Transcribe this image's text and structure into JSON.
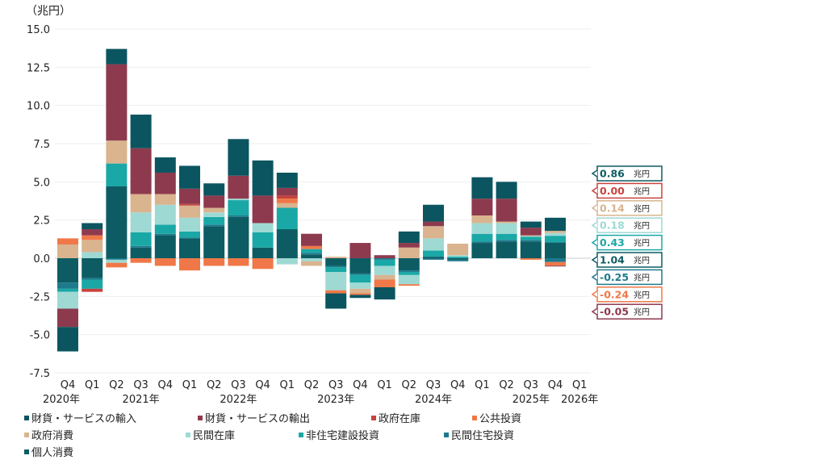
{
  "chart_data": {
    "type": "bar",
    "stacked": true,
    "unit_label": "（兆円）",
    "ylim": [
      -7.5,
      15.0
    ],
    "yticks": [
      "15.0",
      "12.5",
      "10.0",
      "7.5",
      "5.0",
      "2.5",
      "0.0",
      "-2.5",
      "-5.0",
      "-7.5"
    ],
    "ytick_values": [
      15.0,
      12.5,
      10.0,
      7.5,
      5.0,
      2.5,
      0.0,
      -2.5,
      -5.0,
      -7.5
    ],
    "categories": [
      "Q4",
      "Q1",
      "Q2",
      "Q3",
      "Q4",
      "Q1",
      "Q2",
      "Q3",
      "Q4",
      "Q1",
      "Q2",
      "Q3",
      "Q4",
      "Q1",
      "Q2",
      "Q3",
      "Q4",
      "Q1",
      "Q2",
      "Q3",
      "Q4",
      "Q1"
    ],
    "year_labels": [
      {
        "index": 0,
        "label": "2020年"
      },
      {
        "index": 3,
        "label": "2021年"
      },
      {
        "index": 7,
        "label": "2022年"
      },
      {
        "index": 11,
        "label": "2023年"
      },
      {
        "index": 15,
        "label": "2024年"
      },
      {
        "index": 19,
        "label": "2025年"
      },
      {
        "index": 21,
        "label": "2026年"
      }
    ],
    "series": [
      {
        "name": "個人消費",
        "color": "#0d5c63",
        "values": [
          -1.6,
          -1.3,
          4.7,
          0.7,
          1.5,
          1.3,
          2.1,
          2.7,
          0.7,
          1.9,
          0.25,
          -0.5,
          -1.0,
          0.0,
          -0.8,
          0.1,
          -0.1,
          1.0,
          1.1,
          1.1,
          1.04,
          null
        ]
      },
      {
        "name": "民間住宅投資",
        "color": "#1d7a8c",
        "values": [
          -0.4,
          -0.1,
          -0.1,
          0.1,
          0.1,
          0.05,
          0.1,
          0.1,
          0.0,
          0.0,
          0.1,
          -0.1,
          -0.1,
          -0.1,
          -0.1,
          -0.1,
          -0.1,
          0.1,
          0.1,
          0.1,
          -0.25,
          null
        ]
      },
      {
        "name": "非住宅建設投資",
        "color": "#1aa8a6",
        "values": [
          -0.2,
          -0.6,
          1.5,
          0.9,
          0.6,
          0.4,
          0.5,
          1.0,
          1.0,
          1.4,
          0.25,
          -0.3,
          -0.5,
          -0.4,
          -0.2,
          0.4,
          0.1,
          0.5,
          0.4,
          0.2,
          0.43,
          null
        ]
      },
      {
        "name": "民間在庫",
        "color": "#9fd9d4",
        "values": [
          -1.1,
          0.4,
          -0.2,
          1.3,
          1.3,
          0.9,
          0.3,
          0.1,
          0.6,
          -0.4,
          -0.2,
          -1.2,
          -0.4,
          -0.6,
          -0.6,
          0.8,
          0.1,
          0.7,
          0.7,
          0.05,
          0.18,
          null
        ]
      },
      {
        "name": "政府消費",
        "color": "#d9b48f",
        "values": [
          0.9,
          0.8,
          1.5,
          1.2,
          0.7,
          0.8,
          0.3,
          0.0,
          0.0,
          0.3,
          -0.3,
          0.1,
          -0.3,
          -0.3,
          0.7,
          0.8,
          0.75,
          0.5,
          0.1,
          0.05,
          0.14,
          null
        ]
      },
      {
        "name": "公共投資",
        "color": "#f07848",
        "values": [
          0.4,
          0.3,
          -0.3,
          -0.3,
          -0.5,
          -0.8,
          -0.5,
          -0.5,
          -0.7,
          0.3,
          0.2,
          -0.2,
          -0.1,
          -0.5,
          -0.1,
          0.0,
          0.0,
          0.0,
          0.0,
          -0.1,
          -0.24,
          null
        ]
      },
      {
        "name": "政府在庫",
        "color": "#c8423c",
        "values": [
          0.0,
          -0.2,
          0.0,
          0.0,
          0.0,
          0.1,
          0.0,
          0.0,
          0.0,
          0.2,
          0.0,
          0.0,
          0.0,
          0.0,
          0.0,
          0.0,
          0.0,
          0.0,
          0.0,
          0.0,
          0.0,
          null
        ]
      },
      {
        "name": "財貨・サービスの輸出",
        "color": "#8e3a4e",
        "values": [
          -1.2,
          0.4,
          5.0,
          3.0,
          1.4,
          1.0,
          0.8,
          1.5,
          1.8,
          0.5,
          0.8,
          0.0,
          1.0,
          0.2,
          0.3,
          0.3,
          0.0,
          1.1,
          1.5,
          0.5,
          -0.05,
          null
        ]
      },
      {
        "name": "財貨・サービスの輸入",
        "color": "#0b5560",
        "values": [
          -1.6,
          0.4,
          1.0,
          2.2,
          1.0,
          1.5,
          0.8,
          2.4,
          2.3,
          1.0,
          0.0,
          -1.0,
          -0.2,
          -0.8,
          0.75,
          1.1,
          0.0,
          1.4,
          1.1,
          0.4,
          0.86,
          null
        ]
      }
    ],
    "annotations": [
      {
        "value": "0.86",
        "unit": "兆円",
        "color": "#0d5c63",
        "series": "財貨・サービスの輸入"
      },
      {
        "value": "0.00",
        "unit": "兆円",
        "color": "#c8423c",
        "series": "政府在庫"
      },
      {
        "value": "0.14",
        "unit": "兆円",
        "color": "#d9b48f",
        "series": "政府消費"
      },
      {
        "value": "0.18",
        "unit": "兆円",
        "color": "#9fd9d4",
        "series": "民間在庫"
      },
      {
        "value": "0.43",
        "unit": "兆円",
        "color": "#1aa8a6",
        "series": "非住宅建設投資"
      },
      {
        "value": "1.04",
        "unit": "兆円",
        "color": "#0d5c63",
        "series": "個人消費"
      },
      {
        "value": "-0.25",
        "unit": "兆円",
        "color": "#1d7a8c",
        "series": "民間住宅投資"
      },
      {
        "value": "-0.24",
        "unit": "兆円",
        "color": "#f07848",
        "series": "公共投資"
      },
      {
        "value": "-0.05",
        "unit": "兆円",
        "color": "#8e3a4e",
        "series": "財貨・サービスの輸出"
      }
    ]
  },
  "legend": [
    {
      "label": "財貨・サービスの輸入",
      "color": "#0b5560"
    },
    {
      "label": "財貨・サービスの輸出",
      "color": "#8e3a4e"
    },
    {
      "label": "政府在庫",
      "color": "#c8423c"
    },
    {
      "label": "公共投資",
      "color": "#f07848"
    },
    {
      "label": "政府消費",
      "color": "#d9b48f"
    },
    {
      "label": "民間在庫",
      "color": "#9fd9d4"
    },
    {
      "label": "非住宅建設投資",
      "color": "#1aa8a6"
    },
    {
      "label": "民間住宅投資",
      "color": "#1d7a8c"
    },
    {
      "label": "個人消費",
      "color": "#0d5c63"
    }
  ]
}
